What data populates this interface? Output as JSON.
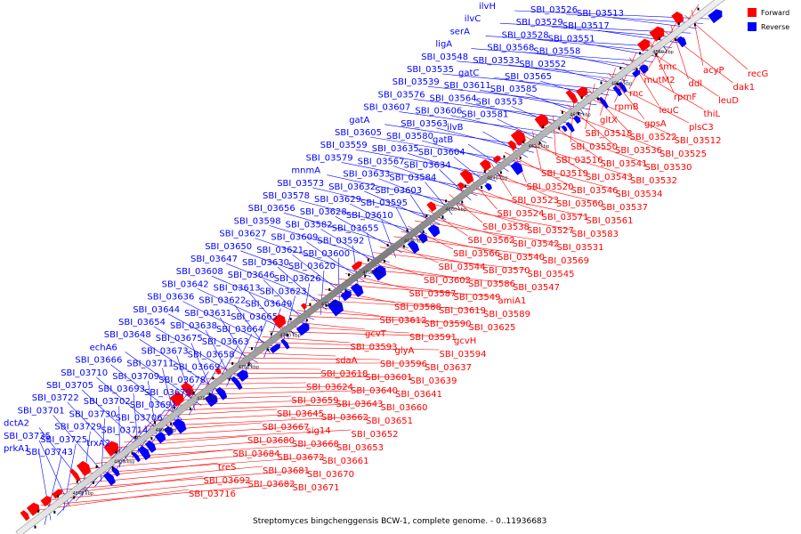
{
  "caption": "Streptomyces bingchenggensis BCW-1, complete genome. - 0..11936683",
  "legend": {
    "forward": "Forward",
    "reverse": "Reverse"
  },
  "colors": {
    "forward": "#ff0000",
    "reverse": "#0000ff",
    "backbone": "#777777",
    "ticks": "#000000"
  },
  "kbp_ticks": [
    "4560 kbp",
    "4580 kbp",
    "4600 kbp",
    "4620 kbp",
    "4640 kbp",
    "4660 kbp",
    "4680 kbp",
    "4700 kbp",
    "4720 kbp",
    "4740 kbp",
    "4760 kbp",
    "4780 kbp",
    "4800 kbp",
    "4820 kbp",
    "4840 kbp"
  ],
  "reverse_labels": [
    "ilvH",
    "SBI_03526",
    "SBI_03513",
    "ilvC",
    "SBI_03529",
    "SBI_03517",
    "serA",
    "SBI_03528",
    "SBI_03551",
    "ligA",
    "SBI_03568",
    "SBI_03558",
    "SBI_03548",
    "SBI_03533",
    "SBI_03552",
    "SBI_03535",
    "gatC",
    "SBI_03565",
    "SBI_03539",
    "SBI_03611",
    "SBI_03585",
    "SBI_03576",
    "SBI_03564",
    "SBI_03553",
    "SBI_03607",
    "SBI_03606",
    "SBI_03581",
    "gatA",
    "SBI_03563",
    "ilvB",
    "SBI_03605",
    "SBI_03580",
    "gatB",
    "SBI_03559",
    "SBI_03635",
    "SBI_03604",
    "SBI_03579",
    "SBI_03567",
    "SBI_03634",
    "mnmA",
    "SBI_03633",
    "SBI_03584",
    "SBI_03573",
    "SBI_03632",
    "SBI_03603",
    "SBI_03578",
    "SBI_03629",
    "SBI_03595",
    "SBI_03656",
    "SBI_03628",
    "SBI_03610",
    "SBI_03598",
    "SBI_03582",
    "SBI_03655",
    "SBI_03627",
    "SBI_03609",
    "SBI_03592",
    "SBI_03650",
    "SBI_03621",
    "SBI_03600",
    "SBI_03647",
    "SBI_03630",
    "SBI_03620",
    "SBI_03608",
    "SBI_03646",
    "SBI_03626",
    "SBI_03642",
    "SBI_03613",
    "SBI_03623",
    "SBI_03636",
    "SBI_03622",
    "SBI_03649",
    "SBI_03644",
    "SBI_03631",
    "SBI_03665",
    "SBI_03654",
    "SBI_03638",
    "SBI_03664",
    "SBI_03648",
    "SBI_03675",
    "SBI_03663",
    "echA6",
    "SBI_03673",
    "SBI_03658",
    "SBI_03666",
    "SBI_03711",
    "SBI_03669",
    "SBI_03710",
    "SBI_03709",
    "SBI_03678",
    "SBI_03705",
    "SBI_03693",
    "SBI_03679",
    "SBI_03722",
    "SBI_03702",
    "SBI_03691",
    "SBI_03701",
    "SBI_03730",
    "SBI_03706",
    "dctA2",
    "SBI_03729",
    "SBI_03714",
    "SBI_03735",
    "SBI_03725",
    "trxA2",
    "prkA1",
    "SBI_03743"
  ],
  "forward_labels": [
    "smc",
    "acyP",
    "recG",
    "mutM2",
    "ddl",
    "dak1",
    "rnc",
    "rpmF",
    "leuD",
    "rpmB",
    "leuC",
    "thiL",
    "gltX",
    "gpsA",
    "plsC3",
    "SBI_03518",
    "SBI_03522",
    "SBI_03512",
    "SBI_03550",
    "SBI_03536",
    "SBI_03525",
    "SBI_03516",
    "SBI_03541",
    "SBI_03530",
    "SBI_03519",
    "SBI_03543",
    "SBI_03532",
    "SBI_03520",
    "SBI_03546",
    "SBI_03534",
    "SBI_03523",
    "SBI_03560",
    "SBI_03537",
    "SBI_03524",
    "SBI_03571",
    "SBI_03561",
    "SBI_03538",
    "SBI_03527",
    "SBI_03583",
    "SBI_03562",
    "SBI_03542",
    "SBI_03531",
    "SBI_03566",
    "SBI_03540",
    "SBI_03569",
    "SBI_03544",
    "SBI_03570",
    "SBI_03545",
    "SBI_03602",
    "SBI_03586",
    "SBI_03547",
    "SBI_03587",
    "SBI_03549",
    "amiA1",
    "SBI_03588",
    "SBI_03619",
    "SBI_03589",
    "SBI_03612",
    "SBI_03590",
    "SBI_03625",
    "gcvT",
    "SBI_03591",
    "gcvH",
    "SBI_03593",
    "glyA",
    "SBI_03594",
    "sdaA",
    "SBI_03596",
    "SBI_03637",
    "SBI_03618",
    "SBI_03601",
    "SBI_03639",
    "SBI_03624",
    "SBI_03640",
    "SBI_03641",
    "SBI_03659",
    "SBI_03643",
    "SBI_03660",
    "SBI_03645",
    "SBI_03662",
    "SBI_03651",
    "SBI_03667",
    "sig14",
    "SBI_03652",
    "SBI_03680",
    "SBI_03668",
    "SBI_03653",
    "SBI_03684",
    "SBI_03672",
    "SBI_03661",
    "treS",
    "SBI_03681",
    "SBI_03670",
    "SBI_03692",
    "SBI_03682",
    "SBI_03671",
    "SBI_03716"
  ]
}
